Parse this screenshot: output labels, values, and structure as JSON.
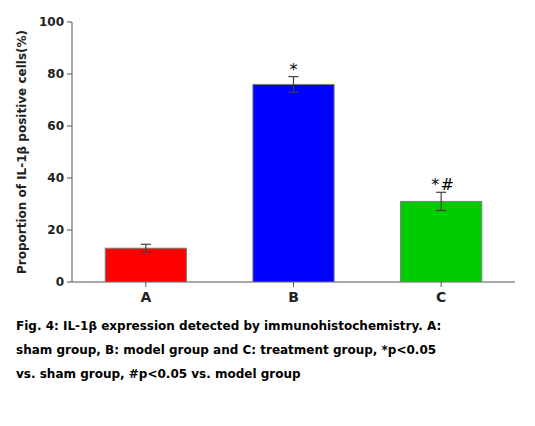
{
  "chart_data": {
    "type": "bar",
    "categories": [
      "A",
      "B",
      "C"
    ],
    "values": [
      13.0,
      76.0,
      31.0
    ],
    "errors": [
      1.5,
      3.0,
      3.5
    ],
    "colors": [
      "#ff0000",
      "#0000ff",
      "#00cc00"
    ],
    "ylabel": "Proportion of IL-1β positive cells(%)",
    "ylim": [
      0,
      100
    ],
    "yticks": [
      0,
      20,
      40,
      60,
      80,
      100
    ],
    "grid": false,
    "annotations": [
      {
        "text": "*",
        "x": "B",
        "y": 80.5
      },
      {
        "text": "*",
        "x": "C",
        "y": 36.0
      },
      {
        "text": "#",
        "x": "C",
        "y": 36.0
      }
    ],
    "caption": [
      "Fig. 4: IL-1β expression detected by immunohistochemistry. A:",
      "sham group, B: model group and C: treatment group, *p<0.05",
      "vs. sham group, #p<0.05 vs. model group"
    ]
  }
}
